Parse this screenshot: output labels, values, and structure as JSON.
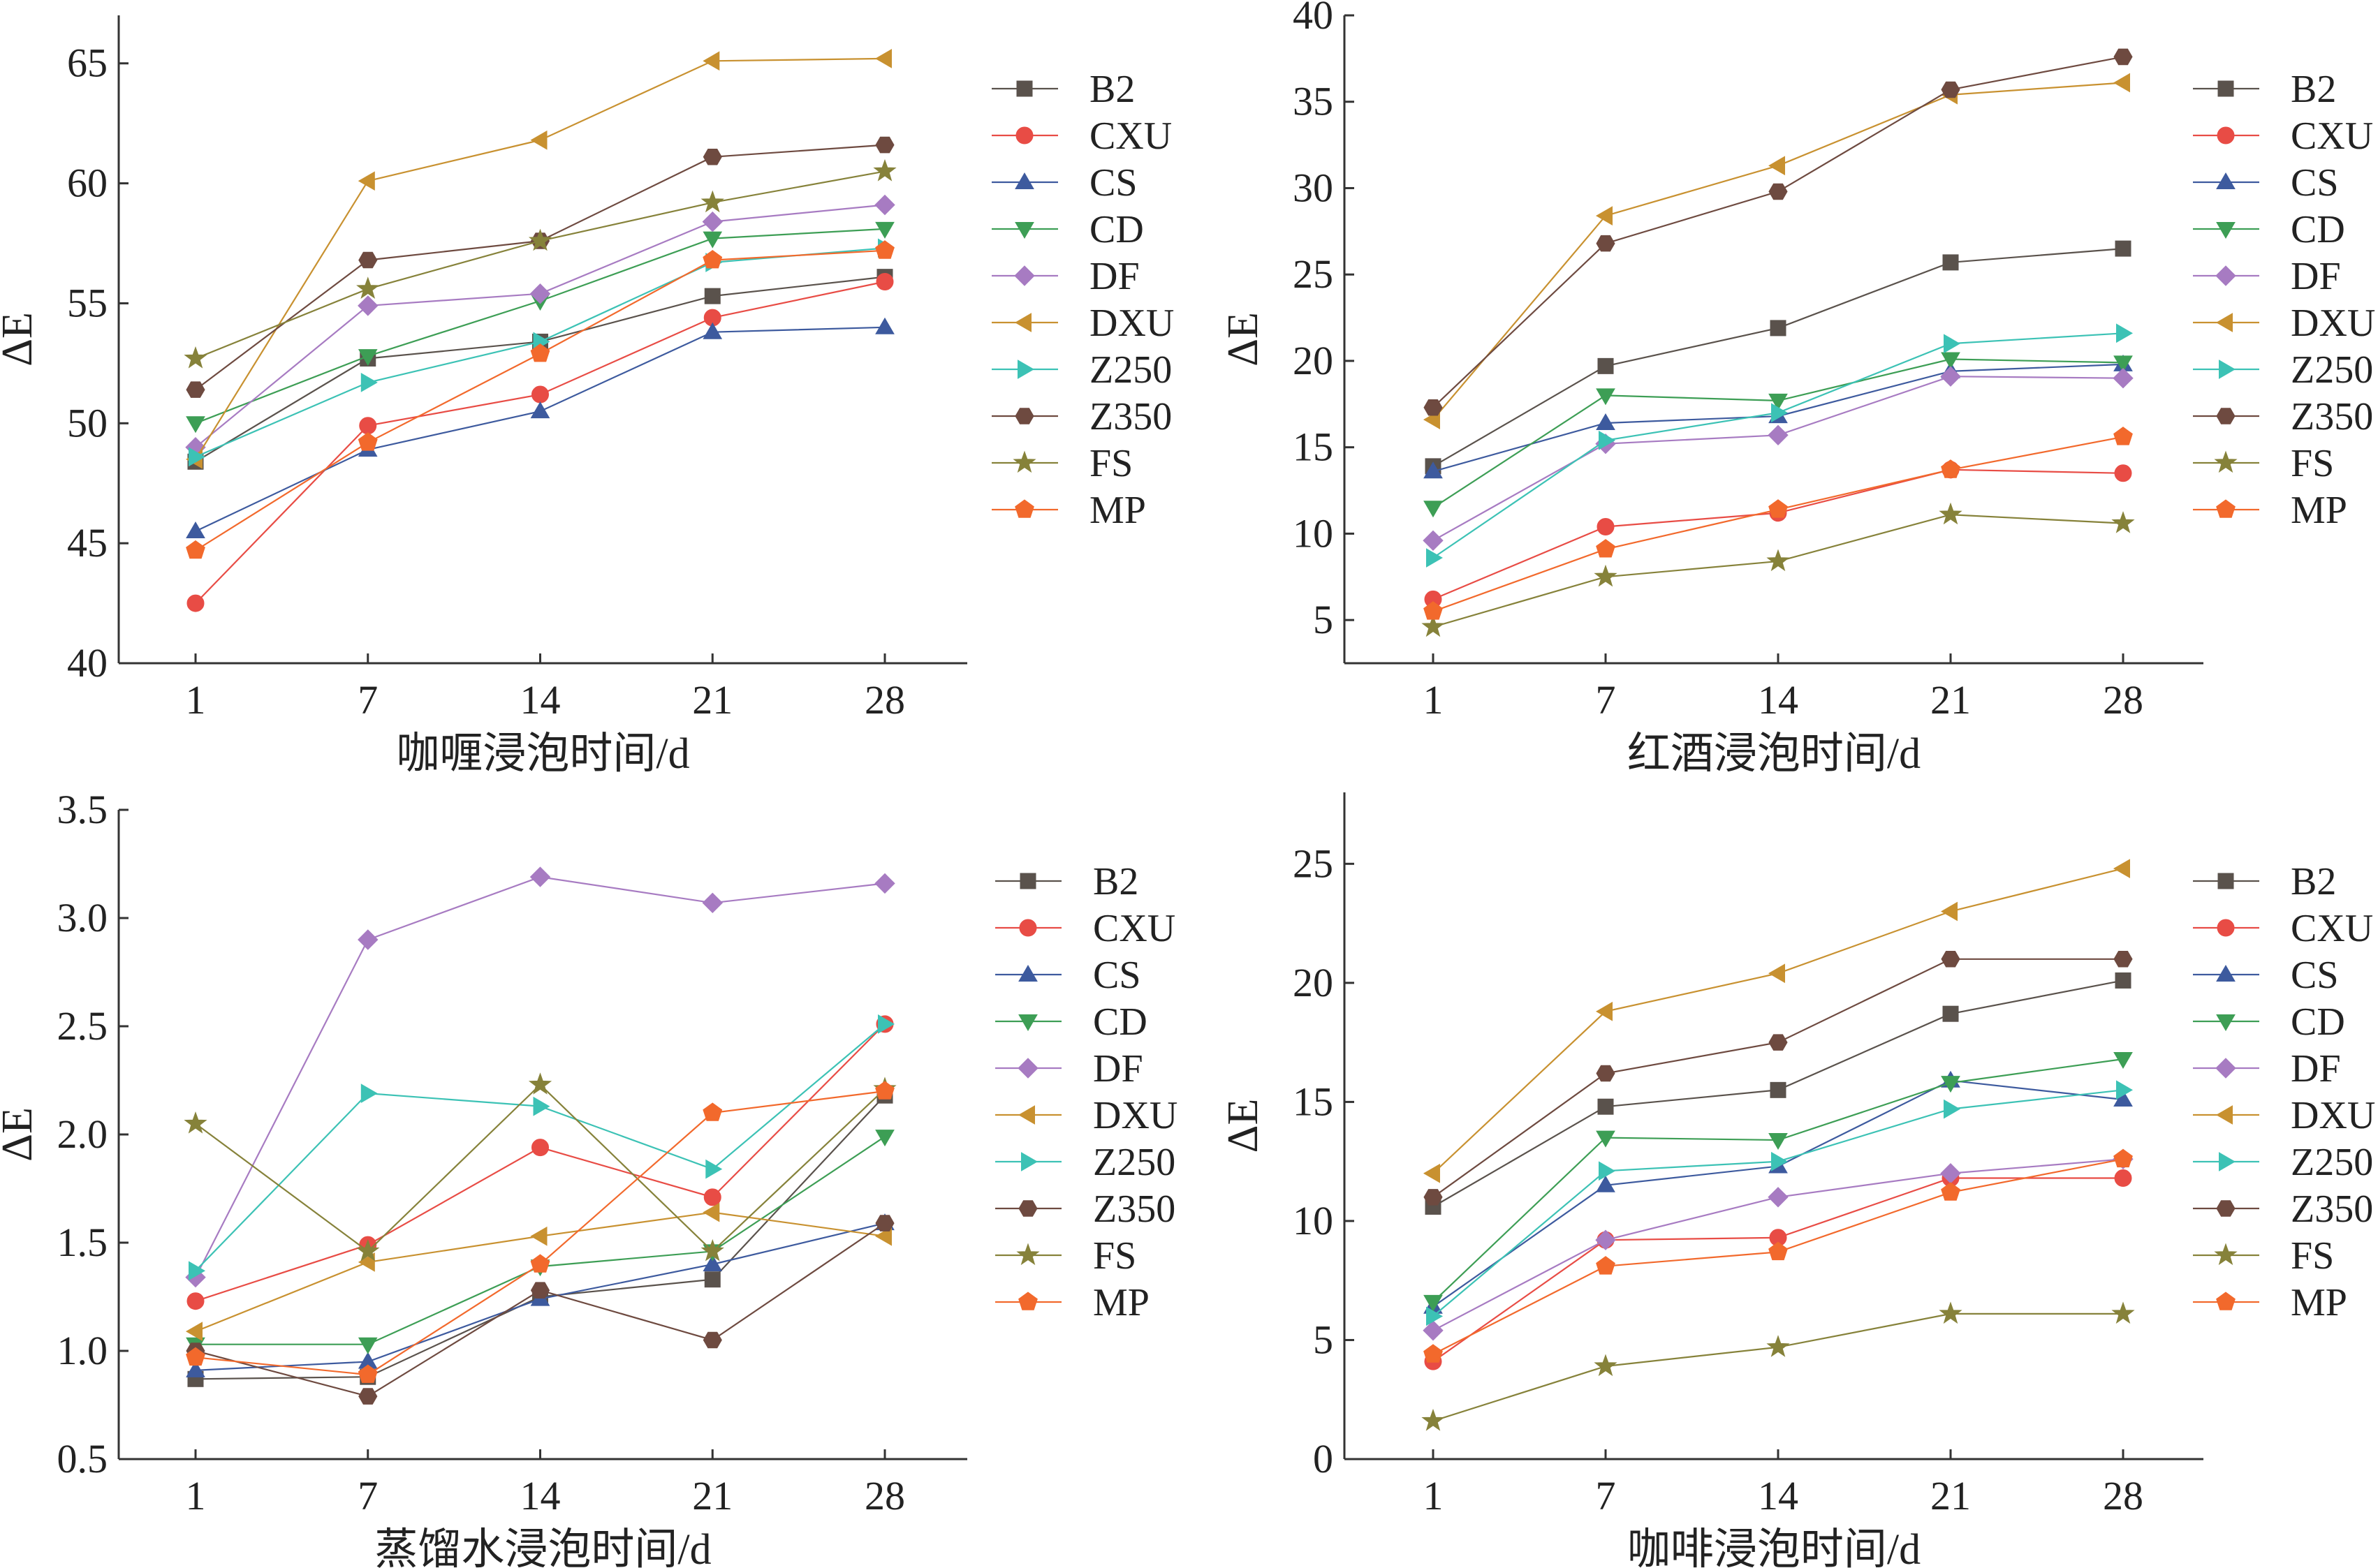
{
  "legend_order": [
    "B2",
    "CXU",
    "CS",
    "CD",
    "DF",
    "DXU",
    "Z250",
    "Z350",
    "FS",
    "MP"
  ],
  "series_style": {
    "B2": {
      "color": "#5a524c",
      "marker": "square"
    },
    "CXU": {
      "color": "#e84c45",
      "marker": "circle"
    },
    "CS": {
      "color": "#3d5a9e",
      "marker": "triangle-up"
    },
    "CD": {
      "color": "#3d9e55",
      "marker": "triangle-down"
    },
    "DF": {
      "color": "#a77bc2",
      "marker": "diamond"
    },
    "DXU": {
      "color": "#c89130",
      "marker": "triangle-left"
    },
    "Z250": {
      "color": "#3cc2b5",
      "marker": "triangle-right"
    },
    "Z350": {
      "color": "#6e4a40",
      "marker": "hexagon"
    },
    "FS": {
      "color": "#86823a",
      "marker": "star"
    },
    "MP": {
      "color": "#f2692c",
      "marker": "pentagon"
    }
  },
  "chart_data": [
    {
      "type": "line",
      "xlabel": "咖喱浸泡时间/d",
      "ylabel": "ΔE",
      "categories": [
        "1",
        "7",
        "14",
        "21",
        "28"
      ],
      "ylim": [
        40,
        67
      ],
      "yticks": [
        40,
        45,
        50,
        55,
        60,
        65
      ],
      "ytick_labels": [
        "40",
        "45",
        "50",
        "55",
        "60",
        "65"
      ],
      "series": [
        {
          "name": "B2",
          "values": [
            48.4,
            52.7,
            53.4,
            55.3,
            56.1
          ]
        },
        {
          "name": "CXU",
          "values": [
            42.5,
            49.9,
            51.2,
            54.4,
            55.9
          ]
        },
        {
          "name": "CS",
          "values": [
            45.5,
            48.9,
            50.5,
            53.8,
            54.0
          ]
        },
        {
          "name": "CD",
          "values": [
            50.0,
            52.8,
            55.1,
            57.7,
            58.1
          ]
        },
        {
          "name": "DF",
          "values": [
            49.0,
            54.9,
            55.4,
            58.4,
            59.1
          ]
        },
        {
          "name": "DXU",
          "values": [
            48.5,
            60.1,
            61.8,
            65.1,
            65.2
          ]
        },
        {
          "name": "Z250",
          "values": [
            48.6,
            51.7,
            53.4,
            56.7,
            57.3
          ]
        },
        {
          "name": "Z350",
          "values": [
            51.4,
            56.8,
            57.6,
            61.1,
            61.6
          ]
        },
        {
          "name": "FS",
          "values": [
            52.7,
            55.6,
            57.6,
            59.2,
            60.5
          ]
        },
        {
          "name": "MP",
          "values": [
            44.7,
            49.2,
            52.9,
            56.8,
            57.2
          ]
        }
      ]
    },
    {
      "type": "line",
      "xlabel": "红酒浸泡时间/d",
      "ylabel": "ΔE",
      "categories": [
        "1",
        "7",
        "14",
        "21",
        "28"
      ],
      "ylim": [
        2.5,
        40
      ],
      "yticks": [
        5,
        10,
        15,
        20,
        25,
        30,
        35,
        40
      ],
      "ytick_labels": [
        "5",
        "10",
        "15",
        "20",
        "25",
        "30",
        "35",
        "40"
      ],
      "series": [
        {
          "name": "B2",
          "values": [
            13.9,
            19.7,
            21.9,
            25.7,
            26.5
          ]
        },
        {
          "name": "CXU",
          "values": [
            6.2,
            10.4,
            11.2,
            13.7,
            13.5
          ]
        },
        {
          "name": "CS",
          "values": [
            13.6,
            16.4,
            16.8,
            19.4,
            19.8
          ]
        },
        {
          "name": "CD",
          "values": [
            11.5,
            18.0,
            17.7,
            20.1,
            19.9
          ]
        },
        {
          "name": "DF",
          "values": [
            9.6,
            15.2,
            15.7,
            19.1,
            19.0
          ]
        },
        {
          "name": "DXU",
          "values": [
            16.6,
            28.4,
            31.3,
            35.4,
            36.1
          ]
        },
        {
          "name": "Z250",
          "values": [
            8.6,
            15.4,
            17.0,
            21.0,
            21.6
          ]
        },
        {
          "name": "Z350",
          "values": [
            17.3,
            26.8,
            29.8,
            35.7,
            37.6
          ]
        },
        {
          "name": "FS",
          "values": [
            4.6,
            7.5,
            8.4,
            11.1,
            10.6
          ]
        },
        {
          "name": "MP",
          "values": [
            5.5,
            9.1,
            11.4,
            13.7,
            15.6
          ]
        }
      ]
    },
    {
      "type": "line",
      "xlabel": "蒸馏水浸泡时间/d",
      "ylabel": "ΔE",
      "categories": [
        "1",
        "7",
        "14",
        "21",
        "28"
      ],
      "ylim": [
        0.5,
        3.5
      ],
      "yticks": [
        0.5,
        1.0,
        1.5,
        2.0,
        2.5,
        3.0,
        3.5
      ],
      "ytick_labels": [
        "0.5",
        "1.0",
        "1.5",
        "2.0",
        "2.5",
        "3.0",
        "3.5"
      ],
      "series": [
        {
          "name": "B2",
          "values": [
            0.87,
            0.88,
            1.25,
            1.33,
            2.18
          ]
        },
        {
          "name": "CXU",
          "values": [
            1.23,
            1.49,
            1.94,
            1.71,
            2.51
          ]
        },
        {
          "name": "CS",
          "values": [
            0.91,
            0.95,
            1.24,
            1.4,
            1.59
          ]
        },
        {
          "name": "CD",
          "values": [
            1.03,
            1.03,
            1.39,
            1.46,
            1.99
          ]
        },
        {
          "name": "DF",
          "values": [
            1.34,
            2.9,
            3.19,
            3.07,
            3.16
          ]
        },
        {
          "name": "DXU",
          "values": [
            1.09,
            1.41,
            1.53,
            1.64,
            1.53
          ]
        },
        {
          "name": "Z250",
          "values": [
            1.37,
            2.19,
            2.13,
            1.84,
            2.51
          ]
        },
        {
          "name": "Z350",
          "values": [
            1.0,
            0.79,
            1.28,
            1.05,
            1.59
          ]
        },
        {
          "name": "FS",
          "values": [
            2.05,
            1.46,
            2.23,
            1.46,
            2.21
          ]
        },
        {
          "name": "MP",
          "values": [
            0.97,
            0.89,
            1.4,
            2.1,
            2.2
          ]
        }
      ]
    },
    {
      "type": "line",
      "xlabel": "咖啡浸泡时间/d",
      "ylabel": "ΔE",
      "categories": [
        "1",
        "7",
        "14",
        "21",
        "28"
      ],
      "ylim": [
        0,
        28
      ],
      "yticks": [
        0,
        5,
        10,
        15,
        20,
        25
      ],
      "ytick_labels": [
        "0",
        "5",
        "10",
        "15",
        "20",
        "25"
      ],
      "series": [
        {
          "name": "B2",
          "values": [
            10.6,
            14.8,
            15.5,
            18.7,
            20.1
          ]
        },
        {
          "name": "CXU",
          "values": [
            4.1,
            9.2,
            9.3,
            11.8,
            11.8
          ]
        },
        {
          "name": "CS",
          "values": [
            6.4,
            11.5,
            12.3,
            15.9,
            15.1
          ]
        },
        {
          "name": "CD",
          "values": [
            6.6,
            13.5,
            13.4,
            15.8,
            16.8
          ]
        },
        {
          "name": "DF",
          "values": [
            5.4,
            9.2,
            11.0,
            12.0,
            12.6
          ]
        },
        {
          "name": "DXU",
          "values": [
            12.0,
            18.8,
            20.4,
            23.0,
            24.8
          ]
        },
        {
          "name": "Z250",
          "values": [
            6.0,
            12.1,
            12.5,
            14.7,
            15.5
          ]
        },
        {
          "name": "Z350",
          "values": [
            11.0,
            16.2,
            17.5,
            21.0,
            21.0
          ]
        },
        {
          "name": "FS",
          "values": [
            1.6,
            3.9,
            4.7,
            6.1,
            6.1
          ]
        },
        {
          "name": "MP",
          "values": [
            4.4,
            8.1,
            8.7,
            11.2,
            12.6
          ]
        }
      ]
    }
  ]
}
